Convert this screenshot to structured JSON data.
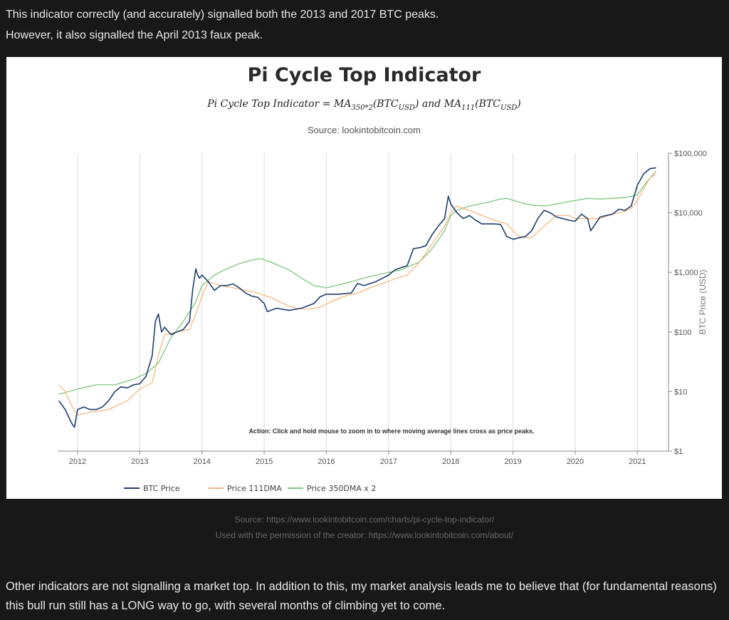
{
  "intro": {
    "line1": "This indicator correctly (and accurately) signalled both the 2013 and 2017 BTC peaks.",
    "line2": "However, it also signalled the April 2013 faux peak."
  },
  "chart": {
    "title": "Pi Cycle Top Indicator",
    "formula": "Pi Cycle Top Indicator = MA350*2(BTCUSD) and MA111(BTCUSD)",
    "source": "Source: lookintobitcoin.com",
    "action_note": "Action: Click and hold mouse to zoom in to where moving average lines cross as price peaks."
  },
  "captions": {
    "source": "Source: https://www.lookintobitcoin.com/charts/pi-cycle-top-indicator/",
    "permission": "Used with the permission of the creator: https://www.lookintobitcoin.com/about/"
  },
  "outro": {
    "text": "Other indicators are not signalling a market top. In addition to this, my market analysis leads me to believe that (for fundamental reasons) this bull run still has a LONG way to go, with several months of climbing yet to come."
  },
  "colors": {
    "btc_price": "#1f3f6e",
    "price_111dma": "#f5b982",
    "price_350dma_x2": "#7cc77c"
  },
  "chart_data": {
    "type": "line",
    "y_scale": "log",
    "ylabel": "BTC Price (USD)",
    "ylim": [
      1,
      100000
    ],
    "xlim": [
      2011.7,
      2021.5
    ],
    "x_ticks": [
      "2012",
      "2013",
      "2014",
      "2015",
      "2016",
      "2017",
      "2018",
      "2019",
      "2020",
      "2021"
    ],
    "y_ticks": [
      "$1",
      "$10",
      "$100",
      "$1,000",
      "$10,000",
      "$100,000"
    ],
    "legend_position": "bottom-left",
    "series": [
      {
        "name": "BTC Price",
        "x": [
          2011.7,
          2011.8,
          2011.9,
          2011.95,
          2012.0,
          2012.1,
          2012.2,
          2012.3,
          2012.4,
          2012.5,
          2012.6,
          2012.7,
          2012.8,
          2012.9,
          2013.0,
          2013.1,
          2013.2,
          2013.25,
          2013.3,
          2013.35,
          2013.4,
          2013.5,
          2013.6,
          2013.7,
          2013.8,
          2013.85,
          2013.9,
          2013.93,
          2013.96,
          2014.0,
          2014.1,
          2014.2,
          2014.3,
          2014.4,
          2014.5,
          2014.6,
          2014.7,
          2014.8,
          2014.9,
          2015.0,
          2015.05,
          2015.2,
          2015.4,
          2015.6,
          2015.8,
          2015.9,
          2016.0,
          2016.2,
          2016.4,
          2016.5,
          2016.6,
          2016.8,
          2017.0,
          2017.1,
          2017.2,
          2017.3,
          2017.4,
          2017.5,
          2017.6,
          2017.7,
          2017.8,
          2017.9,
          2017.96,
          2018.0,
          2018.1,
          2018.2,
          2018.3,
          2018.4,
          2018.5,
          2018.6,
          2018.7,
          2018.8,
          2018.9,
          2019.0,
          2019.1,
          2019.2,
          2019.3,
          2019.4,
          2019.5,
          2019.6,
          2019.7,
          2019.8,
          2019.9,
          2020.0,
          2020.1,
          2020.2,
          2020.25,
          2020.4,
          2020.5,
          2020.6,
          2020.7,
          2020.8,
          2020.9,
          2021.0,
          2021.1,
          2021.2,
          2021.3
        ],
        "y": [
          7,
          5,
          3,
          2.5,
          5,
          5.5,
          5,
          5,
          5.5,
          7,
          10,
          12,
          11.5,
          13,
          13.5,
          18,
          40,
          150,
          200,
          100,
          120,
          90,
          100,
          110,
          150,
          500,
          1150,
          900,
          800,
          900,
          700,
          500,
          600,
          600,
          640,
          550,
          450,
          400,
          380,
          300,
          220,
          250,
          230,
          250,
          300,
          390,
          430,
          430,
          450,
          650,
          600,
          700,
          900,
          1100,
          1200,
          1300,
          2500,
          2600,
          2800,
          4300,
          6000,
          8000,
          19000,
          14000,
          10000,
          8000,
          9000,
          7500,
          6500,
          6500,
          6500,
          6400,
          4000,
          3600,
          3800,
          4000,
          5000,
          8000,
          11000,
          10000,
          8500,
          8000,
          7500,
          7200,
          9500,
          8000,
          5000,
          8500,
          9000,
          9500,
          11500,
          11000,
          13000,
          29000,
          45000,
          55000,
          57000
        ]
      },
      {
        "name": "Price 111DMA",
        "x": [
          2011.7,
          2011.8,
          2011.9,
          2012.0,
          2012.2,
          2012.5,
          2012.8,
          2013.0,
          2013.2,
          2013.3,
          2013.4,
          2013.6,
          2013.8,
          2013.9,
          2014.0,
          2014.1,
          2014.3,
          2014.5,
          2014.7,
          2014.9,
          2015.1,
          2015.3,
          2015.5,
          2015.7,
          2015.9,
          2016.1,
          2016.3,
          2016.5,
          2016.7,
          2016.9,
          2017.1,
          2017.3,
          2017.5,
          2017.7,
          2017.9,
          2018.0,
          2018.1,
          2018.3,
          2018.5,
          2018.7,
          2018.9,
          2019.0,
          2019.1,
          2019.3,
          2019.5,
          2019.7,
          2019.9,
          2020.0,
          2020.2,
          2020.4,
          2020.6,
          2020.8,
          2020.9,
          2021.0,
          2021.1,
          2021.2,
          2021.3
        ],
        "y": [
          13,
          10,
          6,
          4,
          4.5,
          5,
          7,
          11,
          14,
          40,
          90,
          100,
          110,
          200,
          400,
          700,
          600,
          550,
          500,
          450,
          380,
          300,
          250,
          240,
          260,
          330,
          400,
          450,
          550,
          650,
          780,
          900,
          1500,
          3000,
          6000,
          10000,
          13000,
          11000,
          9000,
          7500,
          6500,
          5000,
          4000,
          3800,
          6000,
          9000,
          9000,
          8000,
          8000,
          8000,
          9500,
          10500,
          12000,
          16000,
          25000,
          38000,
          45000
        ]
      },
      {
        "name": "Price 350DMA x 2",
        "x": [
          2011.7,
          2012.0,
          2012.3,
          2012.6,
          2012.9,
          2013.1,
          2013.3,
          2013.5,
          2013.7,
          2013.9,
          2014.0,
          2014.2,
          2014.4,
          2014.6,
          2014.8,
          2014.95,
          2015.1,
          2015.4,
          2015.6,
          2015.8,
          2016.0,
          2016.3,
          2016.6,
          2016.9,
          2017.2,
          2017.5,
          2017.7,
          2017.9,
          2018.0,
          2018.1,
          2018.3,
          2018.6,
          2018.8,
          2018.9,
          2019.1,
          2019.3,
          2019.5,
          2019.7,
          2019.9,
          2020.0,
          2020.2,
          2020.4,
          2020.6,
          2020.8,
          2021.0,
          2021.1,
          2021.2,
          2021.3
        ],
        "y": [
          9,
          11,
          13,
          13,
          16,
          20,
          30,
          80,
          150,
          320,
          600,
          900,
          1150,
          1400,
          1600,
          1700,
          1500,
          1100,
          800,
          600,
          550,
          650,
          800,
          950,
          1100,
          1500,
          2500,
          5000,
          9000,
          11000,
          13000,
          15000,
          17000,
          17500,
          15000,
          13500,
          13000,
          14000,
          15500,
          16000,
          17500,
          17000,
          17500,
          18000,
          20000,
          28000,
          38000,
          50000
        ]
      }
    ]
  }
}
